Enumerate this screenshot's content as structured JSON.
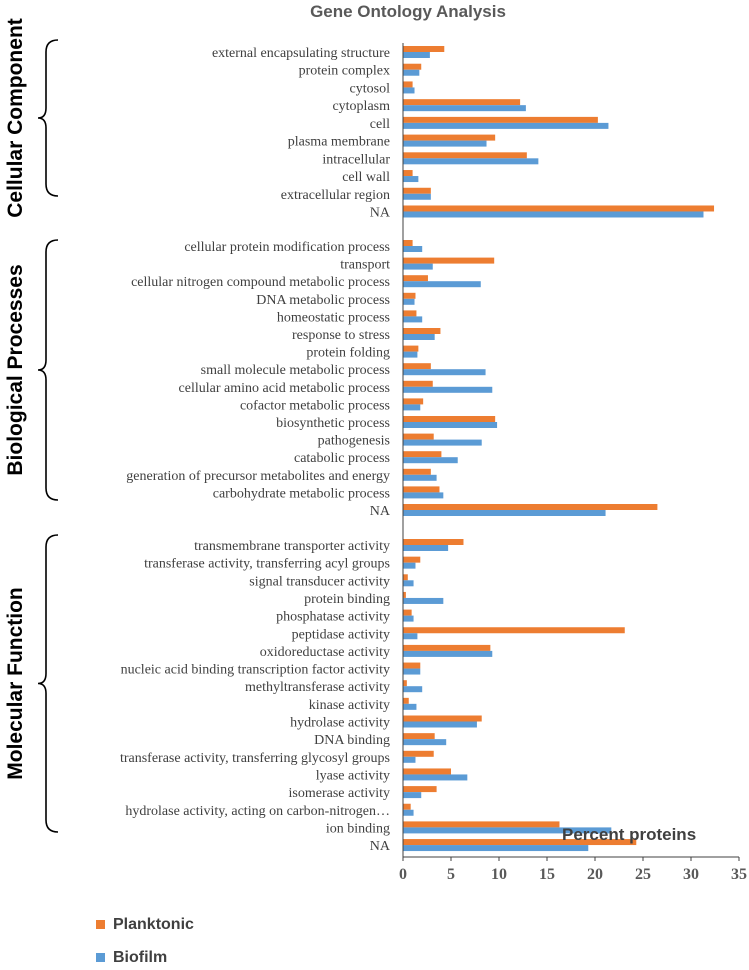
{
  "chart_data": {
    "type": "bar",
    "orientation": "horizontal",
    "title": "Gene Ontology Analysis",
    "xlabel": "Percent proteins",
    "xlim": [
      0,
      35
    ],
    "xticks": [
      0,
      5,
      10,
      15,
      20,
      25,
      30,
      35
    ],
    "grid": false,
    "legend_position": "bottom-left",
    "series": [
      {
        "name": "Planktonic",
        "color": "#ED7D31"
      },
      {
        "name": "Biofilm",
        "color": "#5B9BD5"
      }
    ],
    "groups": [
      {
        "name": "Cellular Component",
        "categories": [
          {
            "label": "external encapsulating structure",
            "planktonic": 4.3,
            "biofilm": 2.8
          },
          {
            "label": "protein complex",
            "planktonic": 1.9,
            "biofilm": 1.7
          },
          {
            "label": "cytosol",
            "planktonic": 1.0,
            "biofilm": 1.2
          },
          {
            "label": "cytoplasm",
            "planktonic": 12.2,
            "biofilm": 12.8
          },
          {
            "label": "cell",
            "planktonic": 20.3,
            "biofilm": 21.4
          },
          {
            "label": "plasma membrane",
            "planktonic": 9.6,
            "biofilm": 8.7
          },
          {
            "label": "intracellular",
            "planktonic": 12.9,
            "biofilm": 14.1
          },
          {
            "label": "cell wall",
            "planktonic": 1.0,
            "biofilm": 1.6
          },
          {
            "label": "extracellular region",
            "planktonic": 2.9,
            "biofilm": 2.9
          },
          {
            "label": "NA",
            "planktonic": 32.4,
            "biofilm": 31.3
          }
        ]
      },
      {
        "name": "Biological Processes",
        "categories": [
          {
            "label": "cellular protein modification process",
            "planktonic": 1.0,
            "biofilm": 2.0
          },
          {
            "label": "transport",
            "planktonic": 9.5,
            "biofilm": 3.1
          },
          {
            "label": "cellular nitrogen compound metabolic process",
            "planktonic": 2.6,
            "biofilm": 8.1
          },
          {
            "label": "DNA metabolic process",
            "planktonic": 1.3,
            "biofilm": 1.2
          },
          {
            "label": "homeostatic process",
            "planktonic": 1.4,
            "biofilm": 2.0
          },
          {
            "label": "response to stress",
            "planktonic": 3.9,
            "biofilm": 3.3
          },
          {
            "label": "protein folding",
            "planktonic": 1.6,
            "biofilm": 1.5
          },
          {
            "label": "small molecule metabolic process",
            "planktonic": 2.9,
            "biofilm": 8.6
          },
          {
            "label": "cellular amino acid metabolic process",
            "planktonic": 3.1,
            "biofilm": 9.3
          },
          {
            "label": "cofactor metabolic process",
            "planktonic": 2.1,
            "biofilm": 1.8
          },
          {
            "label": "biosynthetic process",
            "planktonic": 9.6,
            "biofilm": 9.8
          },
          {
            "label": "pathogenesis",
            "planktonic": 3.2,
            "biofilm": 8.2
          },
          {
            "label": "catabolic process",
            "planktonic": 4.0,
            "biofilm": 5.7
          },
          {
            "label": "generation of precursor metabolites and energy",
            "planktonic": 2.9,
            "biofilm": 3.5
          },
          {
            "label": "carbohydrate metabolic process",
            "planktonic": 3.8,
            "biofilm": 4.2
          },
          {
            "label": "NA",
            "planktonic": 26.5,
            "biofilm": 21.1
          }
        ]
      },
      {
        "name": "Molecular Function",
        "categories": [
          {
            "label": "transmembrane transporter activity",
            "planktonic": 6.3,
            "biofilm": 4.7
          },
          {
            "label": "transferase activity, transferring acyl groups",
            "planktonic": 1.8,
            "biofilm": 1.3
          },
          {
            "label": "signal transducer activity",
            "planktonic": 0.5,
            "biofilm": 1.1
          },
          {
            "label": "protein binding",
            "planktonic": 0.3,
            "biofilm": 4.2
          },
          {
            "label": "phosphatase activity",
            "planktonic": 0.9,
            "biofilm": 1.1
          },
          {
            "label": "peptidase activity",
            "planktonic": 23.1,
            "biofilm": 1.5
          },
          {
            "label": "oxidoreductase activity",
            "planktonic": 9.1,
            "biofilm": 9.3
          },
          {
            "label": "nucleic acid binding transcription factor activity",
            "planktonic": 1.8,
            "biofilm": 1.8
          },
          {
            "label": "methyltransferase activity",
            "planktonic": 0.4,
            "biofilm": 2.0
          },
          {
            "label": "kinase activity",
            "planktonic": 0.6,
            "biofilm": 1.4
          },
          {
            "label": "hydrolase activity",
            "planktonic": 8.2,
            "biofilm": 7.7
          },
          {
            "label": "DNA binding",
            "planktonic": 3.3,
            "biofilm": 4.5
          },
          {
            "label": "transferase activity, transferring glycosyl groups",
            "planktonic": 3.2,
            "biofilm": 1.3
          },
          {
            "label": "lyase activity",
            "planktonic": 5.0,
            "biofilm": 6.7
          },
          {
            "label": "isomerase activity",
            "planktonic": 3.5,
            "biofilm": 1.9
          },
          {
            "label": "hydrolase activity, acting on carbon-nitrogen…",
            "planktonic": 0.8,
            "biofilm": 1.1
          },
          {
            "label": "ion binding",
            "planktonic": 16.3,
            "biofilm": 21.7
          },
          {
            "label": "NA",
            "planktonic": 24.3,
            "biofilm": 19.3
          }
        ]
      }
    ]
  }
}
